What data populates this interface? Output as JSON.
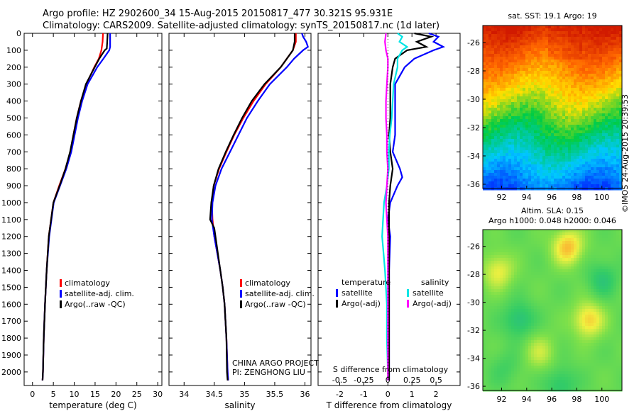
{
  "header": {
    "line1": "Argo profile: HZ 2902600_34 15-Aug-2015 20150817_477 30.321S 95.931E",
    "line2": "Climatology: CARS2009. Satellite-adjusted climatology: synTS_20150817.nc (1d later)"
  },
  "stamp": "©IMOS 24-Aug-2015 20:39:53",
  "colors": {
    "climatology": "#ff0000",
    "satellite": "#0000ff",
    "argo": "#000000",
    "s_satellite": "#00e5e5",
    "s_argo": "#ff00ff"
  },
  "chart_data": [
    {
      "type": "line",
      "panel": "temperature",
      "xlabel": "temperature (deg C)",
      "xlim": [
        -2,
        31
      ],
      "xticks": [
        0,
        5,
        10,
        15,
        20,
        25,
        30
      ],
      "ylim": [
        2080,
        0
      ],
      "yticks": [
        0,
        100,
        200,
        300,
        400,
        500,
        600,
        700,
        800,
        900,
        1000,
        1100,
        1200,
        1300,
        1400,
        1500,
        1600,
        1700,
        1800,
        1900,
        2000
      ],
      "legend": [
        "climatology",
        "satellite-adj. clim.",
        "Argo(..raw -QC)"
      ],
      "series": [
        {
          "name": "climatology",
          "depth": [
            0,
            50,
            100,
            150,
            200,
            300,
            400,
            500,
            600,
            700,
            800,
            900,
            1000,
            1200,
            1400,
            1600,
            1800,
            2000,
            2050
          ],
          "values": [
            16.9,
            16.8,
            16.5,
            15.9,
            14.8,
            12.9,
            11.6,
            10.6,
            9.8,
            9.1,
            7.9,
            6.4,
            5.0,
            3.9,
            3.4,
            3.0,
            2.7,
            2.5,
            2.4
          ]
        },
        {
          "name": "satellite-adj. clim.",
          "depth": [
            0,
            50,
            80,
            100,
            150,
            200,
            300,
            400,
            500,
            600,
            700,
            800,
            900,
            1000,
            1200,
            1400,
            1600,
            1800,
            2000,
            2050
          ],
          "values": [
            18.6,
            18.6,
            18.6,
            18.4,
            17.0,
            15.5,
            13.2,
            11.9,
            10.9,
            10.1,
            9.3,
            8.1,
            6.6,
            5.1,
            4.0,
            3.4,
            3.0,
            2.7,
            2.5,
            2.4
          ]
        },
        {
          "name": "Argo(..raw -QC)",
          "depth": [
            0,
            50,
            90,
            100,
            150,
            200,
            300,
            400,
            500,
            600,
            700,
            800,
            900,
            1000,
            1200,
            1400,
            1600,
            1800,
            2000,
            2050
          ],
          "values": [
            18.0,
            17.9,
            17.8,
            17.3,
            16.0,
            14.9,
            12.8,
            11.6,
            10.6,
            9.8,
            9.0,
            7.9,
            6.5,
            5.0,
            3.9,
            3.4,
            3.0,
            2.7,
            2.5,
            2.4
          ]
        }
      ]
    },
    {
      "type": "line",
      "panel": "salinity",
      "xlabel": "salinity",
      "xlim": [
        33.75,
        36.1
      ],
      "xticks": [
        34,
        34.5,
        35,
        35.5,
        36
      ],
      "xticklabels": [
        "34",
        "34.5",
        "35",
        "35.5",
        "36"
      ],
      "ylim": [
        2080,
        0
      ],
      "legend": [
        "climatology",
        "satellite-adj. clim.",
        "Argo(..raw -QC)"
      ],
      "annotation": [
        "CHINA ARGO PROJECT",
        "PI: ZENGHONG LIU"
      ],
      "series": [
        {
          "name": "climatology",
          "depth": [
            0,
            50,
            100,
            150,
            200,
            300,
            400,
            500,
            600,
            700,
            800,
            900,
            1000,
            1100,
            1200,
            1300,
            1400,
            1500,
            1600,
            1800,
            2000,
            2050
          ],
          "values": [
            35.85,
            35.85,
            35.8,
            35.7,
            35.6,
            35.35,
            35.15,
            34.98,
            34.83,
            34.7,
            34.58,
            34.49,
            34.46,
            34.47,
            34.5,
            34.55,
            34.6,
            34.64,
            34.67,
            34.7,
            34.72,
            34.73
          ]
        },
        {
          "name": "satellite-adj. clim.",
          "depth": [
            0,
            20,
            50,
            80,
            100,
            150,
            200,
            300,
            400,
            500,
            600,
            700,
            800,
            900,
            1000,
            1100,
            1200,
            1300,
            1400,
            1500,
            1600,
            1800,
            2000,
            2050
          ],
          "values": [
            35.95,
            35.97,
            36.02,
            36.05,
            35.97,
            35.82,
            35.7,
            35.42,
            35.22,
            35.04,
            34.9,
            34.76,
            34.62,
            34.52,
            34.47,
            34.46,
            34.5,
            34.55,
            34.6,
            34.64,
            34.67,
            34.7,
            34.72,
            34.73
          ]
        },
        {
          "name": "Argo(..raw -QC)",
          "depth": [
            0,
            50,
            100,
            150,
            200,
            300,
            400,
            500,
            600,
            700,
            800,
            900,
            1000,
            1100,
            1150,
            1200,
            1300,
            1400,
            1500,
            1600,
            1800,
            2000,
            2050
          ],
          "values": [
            35.83,
            35.83,
            35.8,
            35.7,
            35.6,
            35.33,
            35.12,
            34.96,
            34.82,
            34.69,
            34.57,
            34.49,
            34.45,
            34.43,
            34.5,
            34.52,
            34.56,
            34.6,
            34.64,
            34.67,
            34.7,
            34.71,
            34.72
          ]
        }
      ]
    },
    {
      "type": "line",
      "panel": "difference",
      "xlabel": "T difference from climatology",
      "xlabel_top": "S difference from climatology",
      "xlim": [
        -2.9,
        3.0
      ],
      "xticks": [
        -2,
        -1,
        0,
        1,
        2
      ],
      "xticks_s": [
        -0.5,
        -0.25,
        0,
        0.25,
        0.5
      ],
      "xticklabels_s": [
        "-0.5",
        "-0.25",
        "0",
        "0.25",
        "0.5"
      ],
      "ylim": [
        2080,
        0
      ],
      "legend_groups": [
        {
          "title": "temperature",
          "items": [
            "satellite",
            "Argo(-adj)"
          ]
        },
        {
          "title": "salinity",
          "items": [
            "satellite",
            "Argo(-adj)"
          ]
        }
      ],
      "series": [
        {
          "name": "satellite",
          "group": "temperature",
          "depth": [
            0,
            20,
            50,
            80,
            100,
            150,
            200,
            300,
            400,
            500,
            600,
            700,
            800,
            850,
            900,
            1000,
            1100,
            1200,
            1400,
            1600,
            1800,
            2000,
            2050
          ],
          "values": [
            1.7,
            2.1,
            1.9,
            2.3,
            1.9,
            1.1,
            0.7,
            0.3,
            0.3,
            0.3,
            0.3,
            0.2,
            0.5,
            0.6,
            0.4,
            0.1,
            0.0,
            0.1,
            0.05,
            0.05,
            0.05,
            0.05,
            0.05
          ]
        },
        {
          "name": "Argo(-adj)",
          "group": "temperature",
          "depth": [
            0,
            20,
            50,
            80,
            100,
            150,
            200,
            300,
            400,
            500,
            600,
            700,
            800,
            900,
            1000,
            1200,
            1400,
            1600,
            1800,
            2000,
            2050
          ],
          "values": [
            1.1,
            1.8,
            1.2,
            1.6,
            0.8,
            0.3,
            0.2,
            0.1,
            0.1,
            0.1,
            0.05,
            0.1,
            0.2,
            0.1,
            0.05,
            0.05,
            0.05,
            0.05,
            0.05,
            0.05,
            0.05
          ]
        },
        {
          "name": "satellite",
          "group": "salinity",
          "depth": [
            0,
            20,
            50,
            80,
            100,
            150,
            200,
            300,
            400,
            500,
            600,
            700,
            800,
            900,
            1000,
            1100,
            1200,
            1400,
            1600,
            1800,
            2000,
            2050
          ],
          "values": [
            0.1,
            0.15,
            0.12,
            0.2,
            0.15,
            0.1,
            0.1,
            0.06,
            0.05,
            0.04,
            0.02,
            0.01,
            0.01,
            -0.01,
            -0.04,
            -0.05,
            -0.06,
            -0.03,
            -0.01,
            -0.01,
            0.0,
            0.0
          ]
        },
        {
          "name": "Argo(-adj)",
          "group": "salinity",
          "depth": [
            0,
            50,
            100,
            150,
            200,
            300,
            400,
            500,
            600,
            700,
            800,
            900,
            1000,
            1200,
            1400,
            1600,
            1800,
            2000,
            2050
          ],
          "values": [
            -0.02,
            -0.03,
            -0.02,
            0.0,
            0.0,
            -0.01,
            -0.02,
            -0.02,
            -0.01,
            -0.01,
            0.0,
            -0.01,
            -0.02,
            0.0,
            0.0,
            0.0,
            0.0,
            0.0,
            0.0
          ]
        }
      ]
    },
    {
      "type": "heatmap",
      "panel": "sst-map",
      "title": "sat. SST: 19.1 Argo: 19",
      "xlim": [
        90.5,
        101.6
      ],
      "ylim": [
        -36.3,
        -24.8
      ],
      "xticks": [
        92,
        94,
        96,
        98,
        100
      ],
      "yticks": [
        -26,
        -28,
        -30,
        -32,
        -34,
        -36
      ],
      "scale": [
        "#0033ff",
        "#00c8ff",
        "#00cc44",
        "#ffe000",
        "#ff6600",
        "#d11a00"
      ]
    },
    {
      "type": "heatmap",
      "panel": "sla-map",
      "title_lines": [
        "Altim. SLA: 0.15",
        "Argo h1000: 0.048 h2000: 0.046"
      ],
      "xlim": [
        90.5,
        101.6
      ],
      "ylim": [
        -36.3,
        -24.8
      ],
      "xticks": [
        92,
        94,
        96,
        98,
        100
      ],
      "yticks": [
        -26,
        -28,
        -30,
        -32,
        -34,
        -36
      ],
      "scale": [
        "#1bb0a0",
        "#33cc66",
        "#7de04a",
        "#f0f040",
        "#ff9a2a"
      ]
    }
  ]
}
